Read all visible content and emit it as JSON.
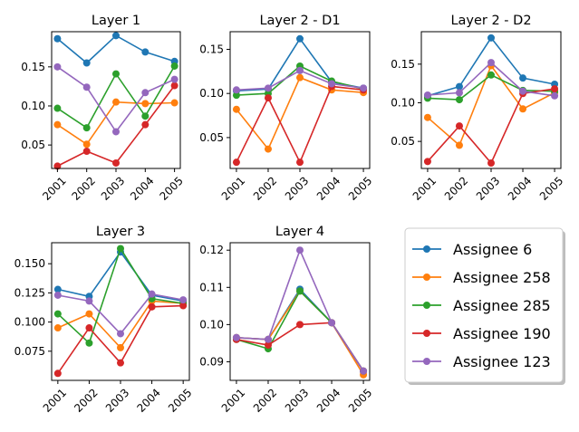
{
  "chart_data": {
    "type": "line",
    "x": [
      "2001",
      "2002",
      "2003",
      "2004",
      "2005"
    ],
    "colors": {
      "Assignee 6": "#1f77b4",
      "Assignee 258": "#ff7f0e",
      "Assignee 285": "#2ca02c",
      "Assignee 190": "#d62728",
      "Assignee 123": "#9467bd"
    },
    "legend": {
      "placement": "right, lower row",
      "entries": [
        "Assignee 6",
        "Assignee 258",
        "Assignee 285",
        "Assignee 190",
        "Assignee 123"
      ]
    },
    "subplots": [
      {
        "title": "Layer 1",
        "ylim": [
          0.02,
          0.195
        ],
        "yticks": [
          "0.05",
          "0.10",
          "0.15"
        ],
        "series": [
          {
            "name": "Assignee 6",
            "values": [
              0.186,
              0.155,
              0.19,
              0.169,
              0.157
            ]
          },
          {
            "name": "Assignee 258",
            "values": [
              0.076,
              0.051,
              0.105,
              0.103,
              0.104
            ]
          },
          {
            "name": "Assignee 285",
            "values": [
              0.097,
              0.072,
              0.141,
              0.087,
              0.151
            ]
          },
          {
            "name": "Assignee 190",
            "values": [
              0.023,
              0.042,
              0.027,
              0.076,
              0.126
            ]
          },
          {
            "name": "Assignee 123",
            "values": [
              0.15,
              0.124,
              0.067,
              0.117,
              0.134
            ]
          }
        ]
      },
      {
        "title": "Layer 2 - D1",
        "ylim": [
          0.015,
          0.17
        ],
        "yticks": [
          "0.05",
          "0.10",
          "0.15"
        ],
        "series": [
          {
            "name": "Assignee 6",
            "values": [
              0.103,
              0.105,
              0.162,
              0.113,
              0.106
            ]
          },
          {
            "name": "Assignee 258",
            "values": [
              0.082,
              0.037,
              0.118,
              0.104,
              0.101
            ]
          },
          {
            "name": "Assignee 285",
            "values": [
              0.098,
              0.1,
              0.131,
              0.114,
              0.105
            ]
          },
          {
            "name": "Assignee 190",
            "values": [
              0.022,
              0.095,
              0.022,
              0.108,
              0.104
            ]
          },
          {
            "name": "Assignee 123",
            "values": [
              0.104,
              0.106,
              0.126,
              0.111,
              0.106
            ]
          }
        ]
      },
      {
        "title": "Layer 2 - D2",
        "ylim": [
          0.015,
          0.192
        ],
        "yticks": [
          "0.05",
          "0.10",
          "0.15"
        ],
        "series": [
          {
            "name": "Assignee 6",
            "values": [
              0.109,
              0.121,
              0.184,
              0.132,
              0.124
            ]
          },
          {
            "name": "Assignee 258",
            "values": [
              0.081,
              0.045,
              0.148,
              0.092,
              0.113
            ]
          },
          {
            "name": "Assignee 285",
            "values": [
              0.106,
              0.104,
              0.136,
              0.116,
              0.115
            ]
          },
          {
            "name": "Assignee 190",
            "values": [
              0.024,
              0.07,
              0.022,
              0.112,
              0.118
            ]
          },
          {
            "name": "Assignee 123",
            "values": [
              0.11,
              0.113,
              0.152,
              0.115,
              0.109
            ]
          }
        ]
      },
      {
        "title": "Layer 3",
        "ylim": [
          0.05,
          0.168
        ],
        "yticks": [
          "0.075",
          "0.100",
          "0.125",
          "0.150"
        ],
        "series": [
          {
            "name": "Assignee 6",
            "values": [
              0.128,
              0.122,
              0.16,
              0.123,
              0.118
            ]
          },
          {
            "name": "Assignee 258",
            "values": [
              0.095,
              0.107,
              0.078,
              0.118,
              0.116
            ]
          },
          {
            "name": "Assignee 285",
            "values": [
              0.107,
              0.082,
              0.163,
              0.12,
              0.116
            ]
          },
          {
            "name": "Assignee 190",
            "values": [
              0.056,
              0.095,
              0.065,
              0.113,
              0.114
            ]
          },
          {
            "name": "Assignee 123",
            "values": [
              0.123,
              0.118,
              0.09,
              0.124,
              0.119
            ]
          }
        ]
      },
      {
        "title": "Layer 4",
        "ylim": [
          0.085,
          0.122
        ],
        "yticks": [
          "0.09",
          "0.10",
          "0.11",
          "0.12"
        ],
        "series": [
          {
            "name": "Assignee 6",
            "values": [
              0.0965,
              0.096,
              0.1095,
              0.1005,
              0.0875
            ]
          },
          {
            "name": "Assignee 258",
            "values": [
              0.0965,
              0.096,
              0.109,
              0.1005,
              0.0865
            ]
          },
          {
            "name": "Assignee 285",
            "values": [
              0.096,
              0.0935,
              0.109,
              0.1005,
              0.0875
            ]
          },
          {
            "name": "Assignee 190",
            "values": [
              0.096,
              0.0945,
              0.1,
              0.1005,
              0.0875
            ]
          },
          {
            "name": "Assignee 123",
            "values": [
              0.0965,
              0.096,
              0.12,
              0.1005,
              0.0875
            ]
          }
        ]
      }
    ]
  }
}
